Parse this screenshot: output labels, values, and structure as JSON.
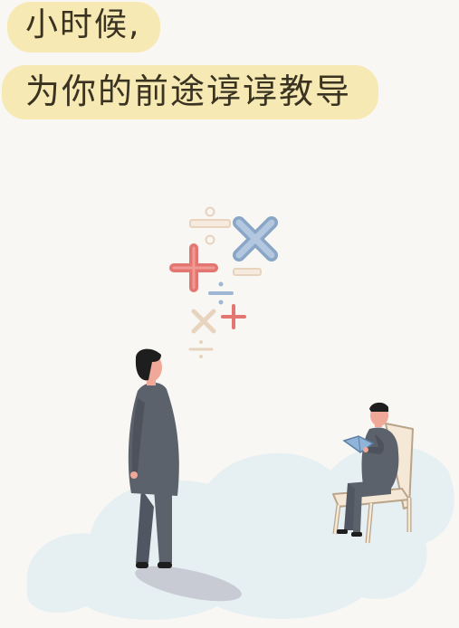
{
  "caption": {
    "line1": "小时候,",
    "line2": "为你的前途谆谆教导"
  },
  "icons": [
    "divide-symbol",
    "multiply-symbol",
    "plus-symbol",
    "minus-symbol"
  ],
  "colors": {
    "background": "#f8f7f4",
    "caption_highlight": "#f6e9b3",
    "caption_text": "#3a3322",
    "cloud": "#e6f0f2",
    "figure_body": "#5c626c",
    "skin": "#f0a898",
    "hair": "#1e1e1e",
    "chair": "#f5e8d6",
    "book": "#8fb4d8",
    "symbol_red": "#e37670",
    "symbol_blue": "#9db7d4",
    "symbol_beige": "#e8d3bf"
  }
}
